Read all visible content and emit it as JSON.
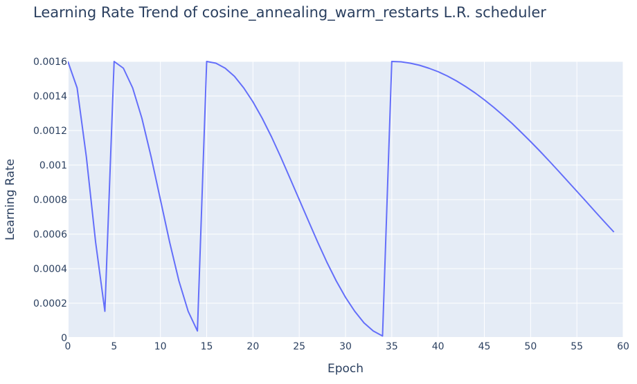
{
  "chart_data": {
    "type": "line",
    "title": "Learning Rate Trend of cosine_annealing_warm_restarts L.R. scheduler",
    "xlabel": "Epoch",
    "ylabel": "Learning Rate",
    "xlim": [
      0,
      60
    ],
    "ylim": [
      0,
      0.0016
    ],
    "x_ticks": [
      0,
      5,
      10,
      15,
      20,
      25,
      30,
      35,
      40,
      45,
      50,
      55,
      60
    ],
    "x_tick_labels": [
      "0",
      "5",
      "10",
      "15",
      "20",
      "25",
      "30",
      "35",
      "40",
      "45",
      "50",
      "55",
      "60"
    ],
    "y_ticks": [
      0,
      0.0002,
      0.0004,
      0.0006,
      0.0008,
      0.001,
      0.0012,
      0.0014,
      0.0016
    ],
    "y_tick_labels": [
      "0",
      "0.0002",
      "0.0004",
      "0.0006",
      "0.0008",
      "0.001",
      "0.0012",
      "0.0014",
      "0.0016"
    ],
    "grid": true,
    "colors": {
      "plot_background": "#e5ecf6",
      "grid": "#ffffff",
      "line": "#636efa"
    },
    "series": [
      {
        "x": [
          0,
          1,
          2,
          3,
          4,
          5,
          6,
          7,
          8,
          9,
          10,
          11,
          12,
          13,
          14,
          15,
          16,
          17,
          18,
          19,
          20,
          21,
          22,
          23,
          24,
          25,
          26,
          27,
          28,
          29,
          30,
          31,
          32,
          33,
          34,
          35,
          36,
          37,
          38,
          39,
          40,
          41,
          42,
          43,
          44,
          45,
          46,
          47,
          48,
          49,
          50,
          51,
          52,
          53,
          54,
          55,
          56,
          57,
          58,
          59
        ],
        "values": [
          0.0016,
          0.001447,
          0.001047,
          0.000553,
          0.000153,
          0.0016,
          0.001561,
          0.001447,
          0.001271,
          0.001047,
          0.0008,
          0.000553,
          0.000329,
          0.000153,
          3.9e-05,
          0.0016,
          0.00159,
          0.001561,
          0.001514,
          0.001447,
          0.001366,
          0.001271,
          0.001164,
          0.001047,
          0.000924,
          0.0008,
          0.000676,
          0.000553,
          0.000436,
          0.000329,
          0.000234,
          0.000153,
          8.6e-05,
          3.9e-05,
          1e-05,
          0.0016,
          0.001598,
          0.00159,
          0.001578,
          0.001561,
          0.001541,
          0.001516,
          0.001487,
          0.001454,
          0.001418,
          0.001378,
          0.001335,
          0.001289,
          0.001241,
          0.001189,
          0.001136,
          0.001081,
          0.001024,
          0.000966,
          0.000907,
          0.000848,
          0.000789,
          0.000729,
          0.00067,
          0.000612
        ]
      }
    ]
  }
}
